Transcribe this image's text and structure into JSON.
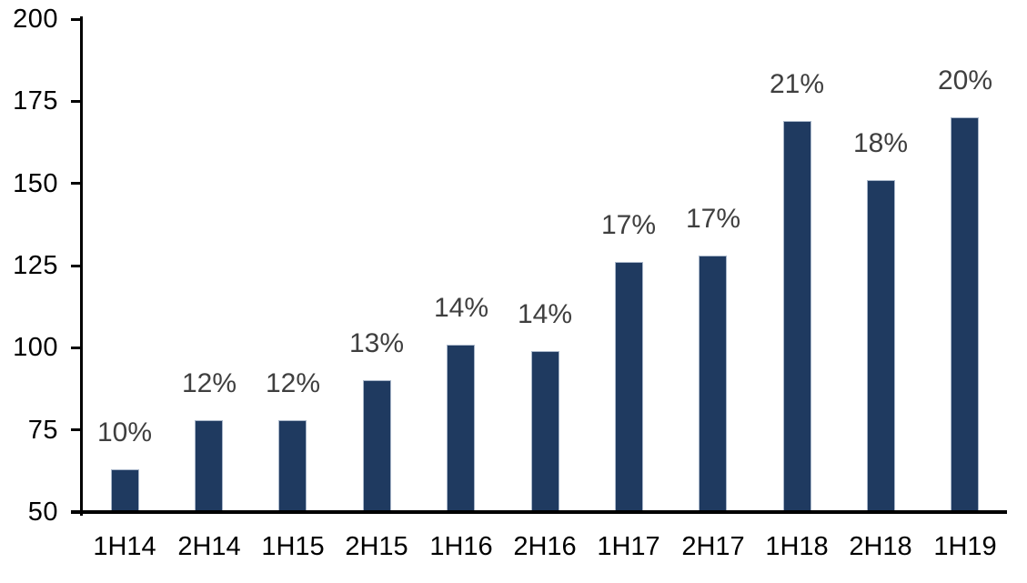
{
  "chart": {
    "background_color": "#ffffff",
    "bar_color": "#1f3a60",
    "bar_border_color": "#a8b6c9",
    "data_label_color": "#3f3f3f",
    "axis_color": "#000000",
    "tick_label_color": "#000000"
  },
  "chart_data": {
    "type": "bar",
    "title": "",
    "xlabel": "",
    "ylabel": "",
    "categories": [
      "1H14",
      "2H14",
      "1H15",
      "2H15",
      "1H16",
      "2H16",
      "1H17",
      "2H17",
      "1H18",
      "2H18",
      "1H19"
    ],
    "values": [
      63,
      78,
      78,
      90,
      101,
      99,
      126,
      128,
      169,
      151,
      170
    ],
    "bar_labels": [
      "10%",
      "12%",
      "12%",
      "13%",
      "14%",
      "14%",
      "17%",
      "17%",
      "21%",
      "18%",
      "20%"
    ],
    "ylim": [
      50,
      200
    ],
    "yticks": [
      50,
      75,
      100,
      125,
      150,
      175,
      200
    ],
    "grid": false,
    "legend": false,
    "legend_position": "none"
  }
}
